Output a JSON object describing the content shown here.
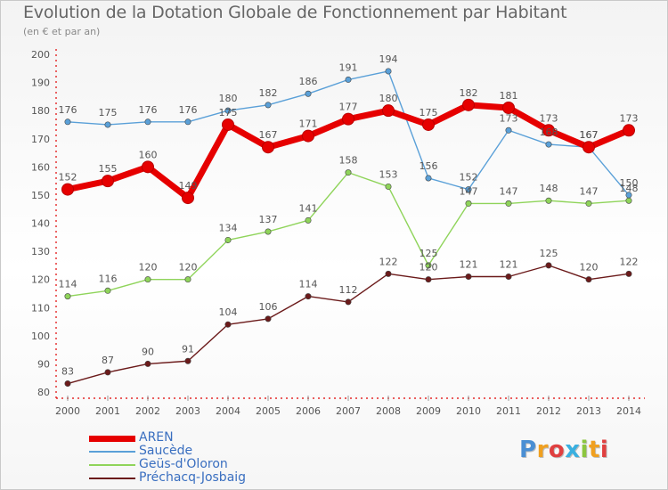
{
  "title": "Evolution de la Dotation Globale de Fonctionnement par Habitant",
  "subtitle": "(en € et par an)",
  "logo": [
    "P",
    "r",
    "o",
    "x",
    "i",
    "t",
    "i"
  ],
  "chart_data": {
    "type": "line",
    "x": [
      "2000",
      "2001",
      "2002",
      "2003",
      "2004",
      "2005",
      "2006",
      "2007",
      "2008",
      "2009",
      "2010",
      "2011",
      "2012",
      "2013",
      "2014"
    ],
    "ylim": [
      80,
      200
    ],
    "yticks": [
      80,
      90,
      100,
      110,
      120,
      130,
      140,
      150,
      160,
      170,
      180,
      190,
      200
    ],
    "grid": false,
    "legend_position": "bottom-left",
    "series": [
      {
        "name": "Préchacq-Josbaig",
        "color": "#6b1a1a",
        "values": [
          83,
          87,
          90,
          91,
          104,
          106,
          114,
          112,
          122,
          120,
          121,
          121,
          125,
          120,
          122
        ]
      },
      {
        "name": "Geüs-d'Oloron",
        "color": "#8fd45a",
        "values": [
          114,
          116,
          120,
          120,
          134,
          137,
          141,
          158,
          153,
          125,
          147,
          147,
          148,
          147,
          148
        ]
      },
      {
        "name": "Saucède",
        "color": "#5aa0d8",
        "values": [
          176,
          175,
          176,
          176,
          180,
          182,
          186,
          191,
          194,
          156,
          152,
          173,
          168,
          167,
          150
        ]
      },
      {
        "name": "AREN",
        "color": "#e60000",
        "values": [
          152,
          155,
          160,
          149,
          175,
          167,
          171,
          177,
          180,
          175,
          182,
          181,
          173,
          167,
          173
        ]
      }
    ],
    "legend_order": [
      "AREN",
      "Saucède",
      "Geüs-d'Oloron",
      "Préchacq-Josbaig"
    ]
  }
}
